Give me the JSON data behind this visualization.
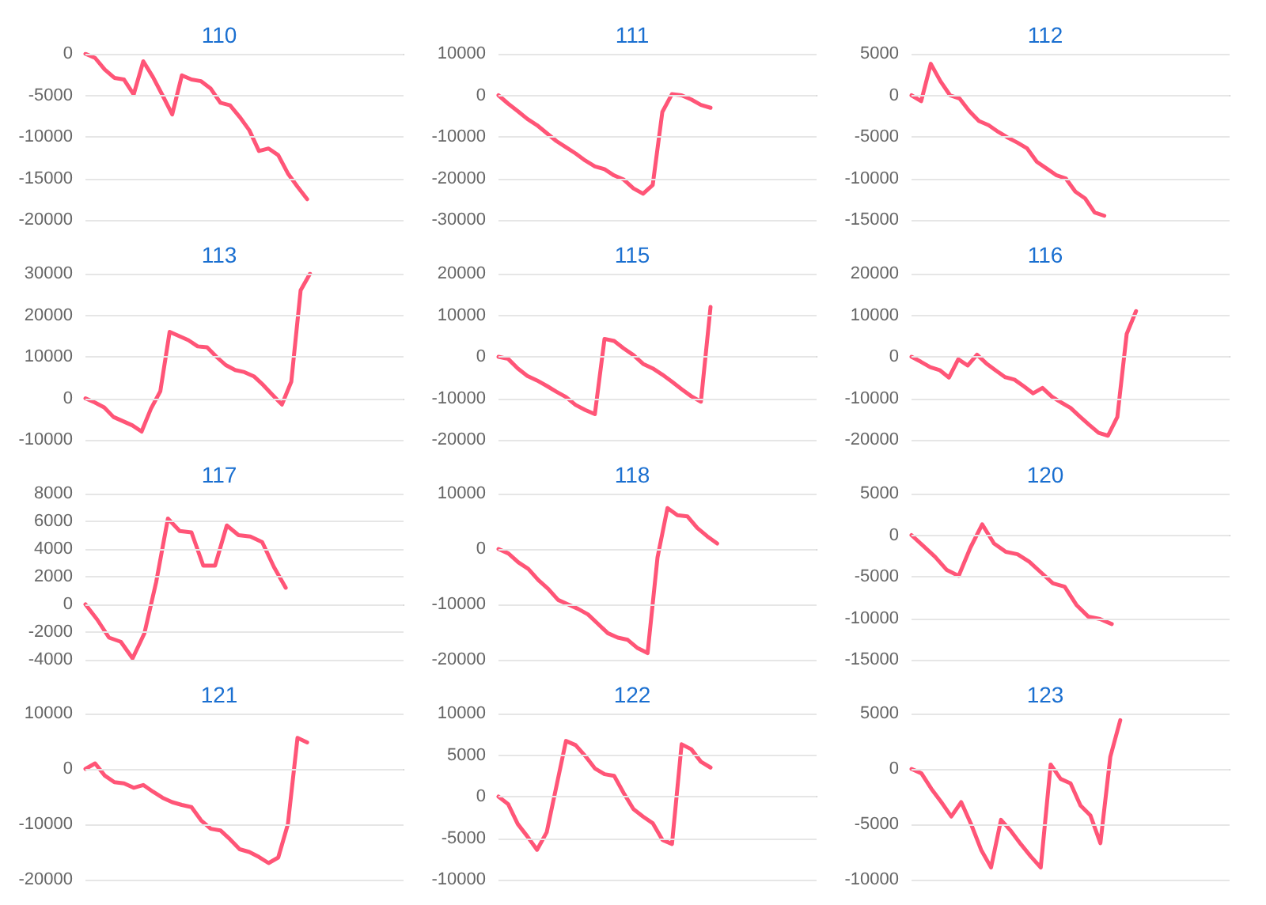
{
  "chart_data": [
    {
      "type": "line",
      "title": "110",
      "color": "#ff5577",
      "grid": "y",
      "marker": "none",
      "ylim": [
        -20000,
        0
      ],
      "yticks": [
        -20000,
        -15000,
        -10000,
        -5000,
        0
      ],
      "categories": [
        null,
        null,
        null,
        null,
        null,
        null,
        null,
        null,
        null,
        null,
        null,
        null,
        null,
        null,
        null,
        null,
        null,
        null,
        null,
        null,
        null,
        null,
        null,
        null,
        null,
        null,
        null,
        null,
        null,
        null,
        null,
        null,
        null,
        null
      ],
      "values": [
        0,
        -500,
        -1900,
        -2900,
        -3100,
        -4900,
        -900,
        -2800,
        -5000,
        -7300,
        -2600,
        -3100,
        -3300,
        -4200,
        -5900,
        -6200,
        -7600,
        -9200,
        -11700,
        -11400,
        -12200,
        -14400,
        -16000,
        -17500,
        null,
        null,
        null,
        null,
        null,
        null,
        null,
        null,
        null,
        null
      ]
    },
    {
      "type": "line",
      "title": "111",
      "color": "#ff5577",
      "grid": "y",
      "marker": "none",
      "ylim": [
        -30000,
        10000
      ],
      "yticks": [
        -30000,
        -20000,
        -10000,
        0,
        10000
      ],
      "categories": [
        null,
        null,
        null,
        null,
        null,
        null,
        null,
        null,
        null,
        null,
        null,
        null,
        null,
        null,
        null,
        null,
        null,
        null,
        null,
        null,
        null,
        null,
        null,
        null,
        null,
        null,
        null,
        null,
        null,
        null,
        null,
        null,
        null,
        null
      ],
      "values": [
        0,
        -2000,
        -3800,
        -5700,
        -7200,
        -9100,
        -11000,
        -12500,
        -14000,
        -15700,
        -17100,
        -17800,
        -19300,
        -20300,
        -22400,
        -23700,
        -21600,
        -4000,
        300,
        0,
        -1000,
        -2300,
        -3000,
        null,
        null,
        null,
        null,
        null,
        null,
        null,
        null,
        null,
        null,
        null
      ]
    },
    {
      "type": "line",
      "title": "112",
      "color": "#ff5577",
      "grid": "y",
      "marker": "none",
      "ylim": [
        -15000,
        5000
      ],
      "yticks": [
        -15000,
        -10000,
        -5000,
        0,
        5000
      ],
      "categories": [
        null,
        null,
        null,
        null,
        null,
        null,
        null,
        null,
        null,
        null,
        null,
        null,
        null,
        null,
        null,
        null,
        null,
        null,
        null,
        null,
        null,
        null,
        null,
        null,
        null,
        null,
        null,
        null,
        null,
        null,
        null,
        null,
        null,
        null
      ],
      "values": [
        0,
        -700,
        3800,
        1700,
        0,
        -400,
        -1900,
        -3100,
        -3600,
        -4400,
        -5100,
        -5700,
        -6400,
        -8000,
        -8800,
        -9600,
        -10000,
        -11600,
        -12400,
        -14100,
        -14500,
        null,
        null,
        null,
        null,
        null,
        null,
        null,
        null,
        null,
        null,
        null,
        null,
        null
      ]
    },
    {
      "type": "line",
      "title": "113",
      "color": "#ff5577",
      "grid": "y",
      "marker": "none",
      "ylim": [
        -10000,
        30000
      ],
      "yticks": [
        -10000,
        0,
        10000,
        20000,
        30000
      ],
      "categories": [
        null,
        null,
        null,
        null,
        null,
        null,
        null,
        null,
        null,
        null,
        null,
        null,
        null,
        null,
        null,
        null,
        null,
        null,
        null,
        null,
        null,
        null,
        null,
        null,
        null,
        null,
        null,
        null,
        null,
        null,
        null,
        null,
        null,
        null,
        null
      ],
      "values": [
        0,
        -1000,
        -2200,
        -4500,
        -5500,
        -6500,
        -8000,
        -2500,
        1700,
        16000,
        15000,
        14000,
        12500,
        12300,
        10000,
        8000,
        6800,
        6300,
        5300,
        3200,
        800,
        -1500,
        4000,
        26000,
        30000,
        null,
        null,
        null,
        null,
        null,
        null,
        null,
        null,
        null,
        null
      ]
    },
    {
      "type": "line",
      "title": "115",
      "color": "#ff5577",
      "grid": "y",
      "marker": "none",
      "ylim": [
        -20000,
        20000
      ],
      "yticks": [
        -20000,
        -10000,
        0,
        10000,
        20000
      ],
      "categories": [
        null,
        null,
        null,
        null,
        null,
        null,
        null,
        null,
        null,
        null,
        null,
        null,
        null,
        null,
        null,
        null,
        null,
        null,
        null,
        null,
        null,
        null,
        null,
        null,
        null,
        null,
        null,
        null,
        null,
        null,
        null,
        null,
        null,
        null
      ],
      "values": [
        0,
        -500,
        -2800,
        -4600,
        -5700,
        -7000,
        -8400,
        -9700,
        -11600,
        -12800,
        -13800,
        4300,
        3800,
        2000,
        400,
        -1700,
        -2800,
        -4300,
        -6000,
        -7800,
        -9500,
        -10800,
        12000,
        null,
        null,
        null,
        null,
        null,
        null,
        null,
        null,
        null,
        null,
        null
      ]
    },
    {
      "type": "line",
      "title": "116",
      "color": "#ff5577",
      "grid": "y",
      "marker": "none",
      "ylim": [
        -20000,
        20000
      ],
      "yticks": [
        -20000,
        -10000,
        0,
        10000,
        20000
      ],
      "categories": [
        null,
        null,
        null,
        null,
        null,
        null,
        null,
        null,
        null,
        null,
        null,
        null,
        null,
        null,
        null,
        null,
        null,
        null,
        null,
        null,
        null,
        null,
        null,
        null,
        null,
        null,
        null,
        null,
        null,
        null,
        null,
        null,
        null,
        null,
        null
      ],
      "values": [
        0,
        -1200,
        -2500,
        -3200,
        -5000,
        -600,
        -2100,
        500,
        -1600,
        -3300,
        -4900,
        -5500,
        -7100,
        -8800,
        -7500,
        -9600,
        -11000,
        -12300,
        -14400,
        -16400,
        -18300,
        -19000,
        -14500,
        5500,
        11000,
        null,
        null,
        null,
        null,
        null,
        null,
        null,
        null,
        null,
        null
      ]
    },
    {
      "type": "line",
      "title": "117",
      "color": "#ff5577",
      "grid": "y",
      "marker": "none",
      "ylim": [
        -4000,
        8000
      ],
      "yticks": [
        -4000,
        -2000,
        0,
        2000,
        4000,
        6000,
        8000
      ],
      "categories": [
        null,
        null,
        null,
        null,
        null,
        null,
        null,
        null,
        null,
        null,
        null,
        null,
        null,
        null,
        null,
        null,
        null,
        null,
        null,
        null,
        null,
        null,
        null,
        null,
        null,
        null,
        null,
        null
      ],
      "values": [
        0,
        -1100,
        -2400,
        -2700,
        -3900,
        -2100,
        1600,
        6200,
        5300,
        5200,
        2800,
        2800,
        5700,
        5000,
        4900,
        4500,
        2700,
        1200,
        null,
        null,
        null,
        null,
        null,
        null,
        null,
        null,
        null,
        null
      ]
    },
    {
      "type": "line",
      "title": "118",
      "color": "#ff5577",
      "grid": "y",
      "marker": "none",
      "ylim": [
        -20000,
        10000
      ],
      "yticks": [
        -20000,
        -10000,
        0,
        10000
      ],
      "categories": [
        null,
        null,
        null,
        null,
        null,
        null,
        null,
        null,
        null,
        null,
        null,
        null,
        null,
        null,
        null,
        null,
        null,
        null,
        null,
        null,
        null,
        null,
        null,
        null,
        null,
        null,
        null,
        null,
        null,
        null,
        null,
        null,
        null
      ],
      "values": [
        0,
        -800,
        -2400,
        -3600,
        -5600,
        -7200,
        -9200,
        -10000,
        -10800,
        -11800,
        -13500,
        -15200,
        -16000,
        -16400,
        -17900,
        -18800,
        -1500,
        7400,
        6100,
        5900,
        3800,
        2300,
        1000,
        null,
        null,
        null,
        null,
        null,
        null,
        null,
        null,
        null,
        null
      ]
    },
    {
      "type": "line",
      "title": "120",
      "color": "#ff5577",
      "grid": "y",
      "marker": "none",
      "ylim": [
        -15000,
        5000
      ],
      "yticks": [
        -15000,
        -10000,
        -5000,
        0,
        5000
      ],
      "categories": [
        null,
        null,
        null,
        null,
        null,
        null,
        null,
        null,
        null,
        null,
        null,
        null,
        null,
        null,
        null,
        null,
        null,
        null,
        null,
        null,
        null,
        null,
        null,
        null,
        null,
        null,
        null,
        null
      ],
      "values": [
        0,
        -1300,
        -2600,
        -4200,
        -4900,
        -1500,
        1300,
        -1000,
        -2000,
        -2300,
        -3200,
        -4500,
        -5800,
        -6200,
        -8400,
        -9800,
        -10100,
        -10700,
        null,
        null,
        null,
        null,
        null,
        null,
        null,
        null,
        null,
        null
      ]
    },
    {
      "type": "line",
      "title": "121",
      "color": "#ff5577",
      "grid": "y",
      "marker": "none",
      "ylim": [
        -20000,
        10000
      ],
      "yticks": [
        -20000,
        -10000,
        0,
        10000
      ],
      "categories": [
        null,
        null,
        null,
        null,
        null,
        null,
        null,
        null,
        null,
        null,
        null,
        null,
        null,
        null,
        null,
        null,
        null,
        null,
        null,
        null,
        null,
        null,
        null,
        null,
        null,
        null,
        null,
        null,
        null,
        null,
        null,
        null,
        null,
        null
      ],
      "values": [
        0,
        1000,
        -1200,
        -2400,
        -2600,
        -3400,
        -2900,
        -4100,
        -5200,
        -6000,
        -6500,
        -6900,
        -9300,
        -10800,
        -11100,
        -12700,
        -14500,
        -15000,
        -15900,
        -17000,
        -16000,
        -10000,
        5600,
        4800,
        null,
        null,
        null,
        null,
        null,
        null,
        null,
        null,
        null,
        null
      ]
    },
    {
      "type": "line",
      "title": "122",
      "color": "#ff5577",
      "grid": "y",
      "marker": "none",
      "ylim": [
        -10000,
        10000
      ],
      "yticks": [
        -10000,
        -5000,
        0,
        5000,
        10000
      ],
      "categories": [
        null,
        null,
        null,
        null,
        null,
        null,
        null,
        null,
        null,
        null,
        null,
        null,
        null,
        null,
        null,
        null,
        null,
        null,
        null,
        null,
        null,
        null,
        null,
        null,
        null,
        null,
        null,
        null,
        null,
        null,
        null,
        null,
        null,
        null
      ],
      "values": [
        0,
        -900,
        -3300,
        -4800,
        -6400,
        -4300,
        1200,
        6700,
        6200,
        4900,
        3400,
        2700,
        2500,
        400,
        -1500,
        -2400,
        -3200,
        -5200,
        -5700,
        6300,
        5700,
        4200,
        3500,
        null,
        null,
        null,
        null,
        null,
        null,
        null,
        null,
        null,
        null,
        null
      ]
    },
    {
      "type": "line",
      "title": "123",
      "color": "#ff5577",
      "grid": "y",
      "marker": "none",
      "ylim": [
        -10000,
        5000
      ],
      "yticks": [
        -10000,
        -5000,
        0,
        5000
      ],
      "categories": [
        null,
        null,
        null,
        null,
        null,
        null,
        null,
        null,
        null,
        null,
        null,
        null,
        null,
        null,
        null,
        null,
        null,
        null,
        null,
        null,
        null,
        null,
        null,
        null,
        null,
        null,
        null,
        null,
        null,
        null,
        null,
        null,
        null
      ],
      "values": [
        0,
        -400,
        -1800,
        -3000,
        -4300,
        -3000,
        -5000,
        -7300,
        -8900,
        -4600,
        -5600,
        -6800,
        -7900,
        -8900,
        400,
        -900,
        -1300,
        -3300,
        -4200,
        -6700,
        1100,
        4400,
        null,
        null,
        null,
        null,
        null,
        null,
        null,
        null,
        null,
        null,
        null
      ]
    }
  ]
}
